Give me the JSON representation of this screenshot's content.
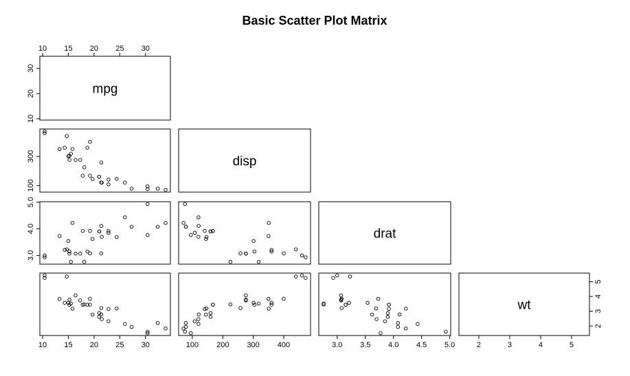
{
  "chart_data": {
    "type": "scatter",
    "title": "Basic Scatter Plot Matrix",
    "variables": [
      "mpg",
      "disp",
      "drat",
      "wt"
    ],
    "lower_panel_only": true,
    "ranges": {
      "mpg": [
        10.4,
        33.9
      ],
      "disp": [
        71.1,
        472
      ],
      "drat": [
        2.76,
        4.93
      ],
      "wt": [
        1.513,
        5.424
      ]
    },
    "ticks": {
      "mpg": [
        10,
        15,
        20,
        25,
        30
      ],
      "mpg_left": [
        10,
        20,
        30
      ],
      "disp": [
        100,
        200,
        300,
        400
      ],
      "disp_left": [
        100,
        300
      ],
      "drat": [
        3.0,
        3.5,
        4.0,
        4.5,
        5.0
      ],
      "drat_left": [
        3.0,
        4.0,
        5.0
      ],
      "wt": [
        2,
        3,
        4,
        5
      ]
    },
    "tick_labels": {
      "mpg_top": [
        "10",
        "15",
        "20",
        "25",
        "30"
      ],
      "mpg_left": [
        "10",
        "20",
        "30"
      ],
      "mpg_bottom": [
        "10",
        "15",
        "20",
        "25",
        "30"
      ],
      "disp_left": [
        "100",
        "300"
      ],
      "disp_bottom": [
        "100",
        "200",
        "300",
        "400"
      ],
      "drat_left": [
        "3.0",
        "4.0",
        "5.0"
      ],
      "drat_bottom": [
        "3.0",
        "3.5",
        "4.0",
        "4.5",
        "5.0"
      ],
      "wt_right": [
        "2",
        "3",
        "4",
        "5"
      ],
      "wt_bottom": [
        "2",
        "3",
        "4",
        "5"
      ]
    },
    "points": [
      {
        "mpg": 21.0,
        "disp": 160.0,
        "drat": 3.9,
        "wt": 2.62
      },
      {
        "mpg": 21.0,
        "disp": 160.0,
        "drat": 3.9,
        "wt": 2.875
      },
      {
        "mpg": 22.8,
        "disp": 108.0,
        "drat": 3.85,
        "wt": 2.32
      },
      {
        "mpg": 21.4,
        "disp": 258.0,
        "drat": 3.08,
        "wt": 3.215
      },
      {
        "mpg": 18.7,
        "disp": 360.0,
        "drat": 3.15,
        "wt": 3.44
      },
      {
        "mpg": 18.1,
        "disp": 225.0,
        "drat": 2.76,
        "wt": 3.46
      },
      {
        "mpg": 14.3,
        "disp": 360.0,
        "drat": 3.21,
        "wt": 3.57
      },
      {
        "mpg": 24.4,
        "disp": 146.7,
        "drat": 3.69,
        "wt": 3.19
      },
      {
        "mpg": 22.8,
        "disp": 140.8,
        "drat": 3.92,
        "wt": 3.15
      },
      {
        "mpg": 19.2,
        "disp": 167.6,
        "drat": 3.92,
        "wt": 3.44
      },
      {
        "mpg": 17.8,
        "disp": 167.6,
        "drat": 3.92,
        "wt": 3.44
      },
      {
        "mpg": 16.4,
        "disp": 275.8,
        "drat": 3.07,
        "wt": 4.07
      },
      {
        "mpg": 17.3,
        "disp": 275.8,
        "drat": 3.07,
        "wt": 3.73
      },
      {
        "mpg": 15.2,
        "disp": 275.8,
        "drat": 3.07,
        "wt": 3.78
      },
      {
        "mpg": 10.4,
        "disp": 472.0,
        "drat": 2.93,
        "wt": 5.25
      },
      {
        "mpg": 10.4,
        "disp": 460.0,
        "drat": 3.0,
        "wt": 5.424
      },
      {
        "mpg": 14.7,
        "disp": 440.0,
        "drat": 3.23,
        "wt": 5.345
      },
      {
        "mpg": 32.4,
        "disp": 78.7,
        "drat": 4.08,
        "wt": 2.2
      },
      {
        "mpg": 30.4,
        "disp": 75.7,
        "drat": 4.93,
        "wt": 1.615
      },
      {
        "mpg": 33.9,
        "disp": 71.1,
        "drat": 4.22,
        "wt": 1.835
      },
      {
        "mpg": 21.5,
        "disp": 120.1,
        "drat": 3.7,
        "wt": 2.465
      },
      {
        "mpg": 15.5,
        "disp": 318.0,
        "drat": 2.76,
        "wt": 3.52
      },
      {
        "mpg": 15.2,
        "disp": 304.0,
        "drat": 3.15,
        "wt": 3.435
      },
      {
        "mpg": 13.3,
        "disp": 350.0,
        "drat": 3.73,
        "wt": 3.84
      },
      {
        "mpg": 19.2,
        "disp": 400.0,
        "drat": 3.08,
        "wt": 3.845
      },
      {
        "mpg": 27.3,
        "disp": 79.0,
        "drat": 4.08,
        "wt": 1.935
      },
      {
        "mpg": 26.0,
        "disp": 120.3,
        "drat": 4.43,
        "wt": 2.14
      },
      {
        "mpg": 30.4,
        "disp": 95.1,
        "drat": 3.77,
        "wt": 1.513
      },
      {
        "mpg": 15.8,
        "disp": 351.0,
        "drat": 4.22,
        "wt": 3.17
      },
      {
        "mpg": 19.7,
        "disp": 145.0,
        "drat": 3.62,
        "wt": 2.77
      },
      {
        "mpg": 15.0,
        "disp": 301.0,
        "drat": 3.54,
        "wt": 3.57
      },
      {
        "mpg": 21.4,
        "disp": 121.0,
        "drat": 4.11,
        "wt": 2.78
      }
    ],
    "marker": "open-circle",
    "grid": false,
    "legend": "none",
    "colors": {
      "points": "#000000",
      "axes": "#000000",
      "background": "#ffffff"
    }
  }
}
